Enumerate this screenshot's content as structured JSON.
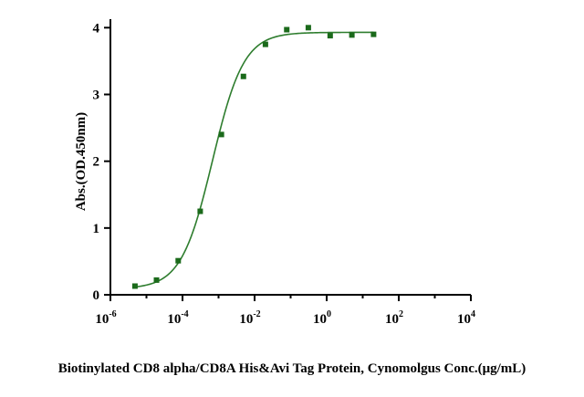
{
  "chart_data": {
    "type": "scatter",
    "title": "",
    "xlabel": "Biotinylated CD8 alpha/CD8A His&Avi Tag Protein, Cynomolgus Conc.(μg/mL)",
    "ylabel": "Abs.(OD.450nm)",
    "x_scale": "log10",
    "xlim": [
      1e-06,
      10000
    ],
    "ylim": [
      0,
      4.1
    ],
    "x_ticks": [
      {
        "base": "10",
        "exp": "-6",
        "value": 1e-06
      },
      {
        "base": "10",
        "exp": "-4",
        "value": 0.0001
      },
      {
        "base": "10",
        "exp": "-2",
        "value": 0.01
      },
      {
        "base": "10",
        "exp": "0",
        "value": 1
      },
      {
        "base": "10",
        "exp": "2",
        "value": 100
      },
      {
        "base": "10",
        "exp": "4",
        "value": 10000
      }
    ],
    "y_ticks": [
      {
        "label": "0",
        "value": 0
      },
      {
        "label": "1",
        "value": 1
      },
      {
        "label": "2",
        "value": 2
      },
      {
        "label": "3",
        "value": 3
      },
      {
        "label": "4",
        "value": 4
      }
    ],
    "grid": false,
    "legend": "none",
    "marker_color": "#1b6a1b",
    "line_color": "#2e7d2e",
    "series": [
      {
        "points": [
          {
            "x": 4.8e-06,
            "y": 0.13
          },
          {
            "x": 1.9e-05,
            "y": 0.22
          },
          {
            "x": 7.6e-05,
            "y": 0.51
          },
          {
            "x": 0.00031,
            "y": 1.25
          },
          {
            "x": 0.0012,
            "y": 2.4
          },
          {
            "x": 0.0049,
            "y": 3.27
          },
          {
            "x": 0.02,
            "y": 3.75
          },
          {
            "x": 0.078,
            "y": 3.97
          },
          {
            "x": 0.31,
            "y": 4.0
          },
          {
            "x": 1.25,
            "y": 3.88
          },
          {
            "x": 5.0,
            "y": 3.89
          },
          {
            "x": 20,
            "y": 3.9
          }
        ],
        "fit": {
          "model": "4PL",
          "bottom": 0.09,
          "top": 3.93,
          "ec50": 0.00068,
          "hill": 1.0
        }
      }
    ]
  }
}
